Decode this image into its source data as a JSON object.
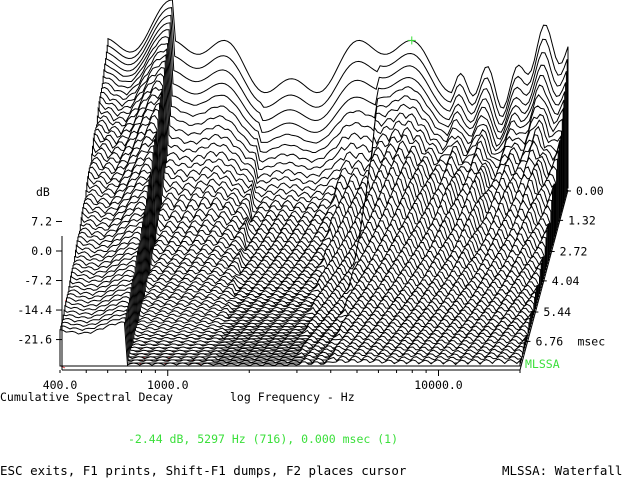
{
  "chart_data": {
    "type": "waterfall",
    "title": "Cumulative Spectral Decay",
    "xlabel": "log Frequency - Hz",
    "ylabel": "dB",
    "x_scale": "log",
    "xlim": [
      400,
      20000
    ],
    "x_ticks": [
      {
        "value": 400,
        "label": "400.0"
      },
      {
        "value": 1000,
        "label": "1000.0"
      },
      {
        "value": 10000,
        "label": "10000.0"
      }
    ],
    "y_ticks": [
      {
        "value": 7.2,
        "label": "7.2"
      },
      {
        "value": 0.0,
        "label": "0.0"
      },
      {
        "value": -7.2,
        "label": "-7.2"
      },
      {
        "value": -14.4,
        "label": "-14.4"
      },
      {
        "value": -21.6,
        "label": "-21.6"
      }
    ],
    "z_label": "msec",
    "z_ticks": [
      {
        "value": 0.0,
        "label": "0.00"
      },
      {
        "value": 1.32,
        "label": "1.32"
      },
      {
        "value": 2.72,
        "label": "2.72"
      },
      {
        "value": 4.04,
        "label": "4.04"
      },
      {
        "value": 5.44,
        "label": "5.44"
      },
      {
        "value": 6.76,
        "label": "6.76"
      }
    ],
    "zlim": [
      0,
      8.0
    ],
    "slices": 60,
    "brand": "MLSSA"
  },
  "cursor": {
    "readout": "-2.44 dB, 5297 Hz (716), 0.000 msec (1)",
    "freq_hz": 5297,
    "level_db": -2.44,
    "time_ms": 0.0
  },
  "status_bar": {
    "help": "ESC exits, F1 prints, Shift-F1 dumps, F2 places cursor",
    "mode": "MLSSA: Waterfall"
  },
  "colors": {
    "background": "#ffffff",
    "trace": "#000000",
    "accent": "#3adf3a",
    "hatch": "#e03030"
  }
}
